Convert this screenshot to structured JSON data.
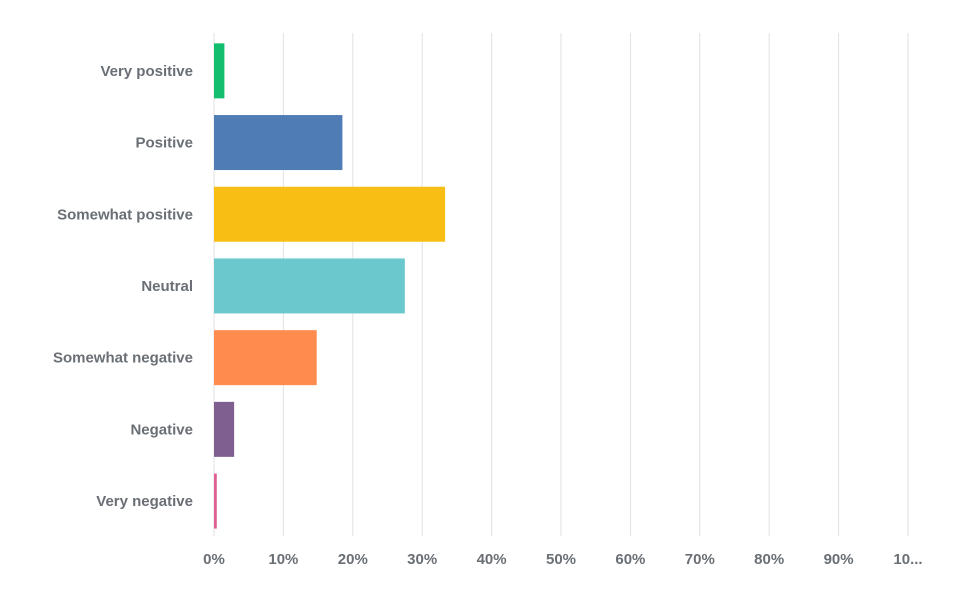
{
  "chart_data": {
    "type": "bar",
    "orientation": "horizontal",
    "categories": [
      "Very positive",
      "Positive",
      "Somewhat positive",
      "Neutral",
      "Somewhat negative",
      "Negative",
      "Very negative"
    ],
    "values": [
      1.5,
      18.5,
      33.3,
      27.5,
      14.8,
      2.9,
      0.4
    ],
    "colors": [
      "#13bf6e",
      "#507cb6",
      "#f9be13",
      "#6bc8cd",
      "#ff8b4f",
      "#7e5f8f",
      "#e05f93"
    ],
    "x_ticks": [
      "0%",
      "10%",
      "20%",
      "30%",
      "40%",
      "50%",
      "60%",
      "70%",
      "80%",
      "90%",
      "10..."
    ],
    "xlim": [
      0,
      100
    ],
    "grid": true,
    "title": "",
    "xlabel": "",
    "ylabel": ""
  }
}
